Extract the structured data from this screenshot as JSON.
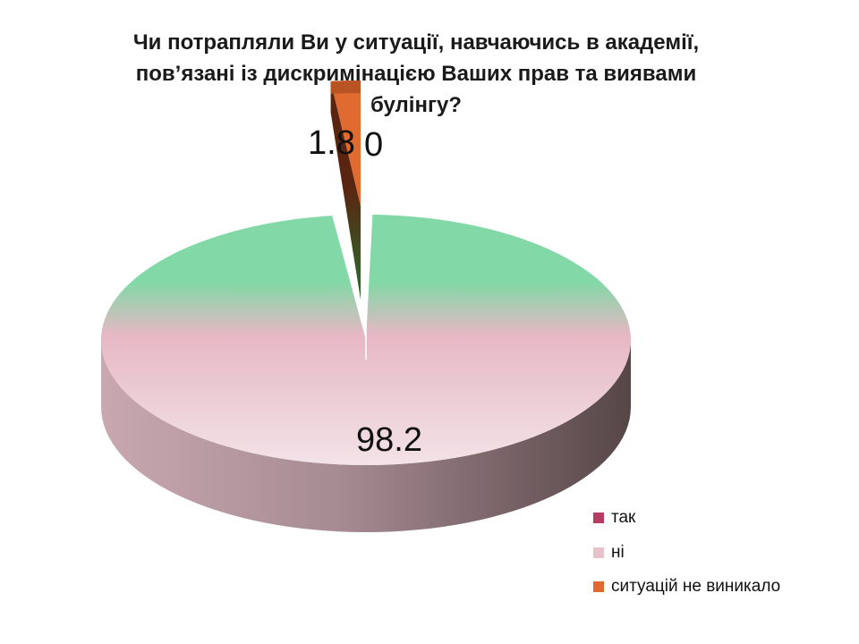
{
  "chart_data": {
    "type": "pie",
    "style": "3d-exploded",
    "title": "Чи потрапляли Ви у ситуації, навчаючись в академії, пов’язані із дискримінацією Ваших прав та виявами булінгу?",
    "series": [
      {
        "name": "так",
        "value": 0,
        "label": "0",
        "color": "#b83b63"
      },
      {
        "name": "ні",
        "value": 98.2,
        "label": "98.2",
        "color": "#e8c2ca"
      },
      {
        "name": "ситуацій не виникало",
        "value": 1.8,
        "label": "1.8",
        "color": "#e06a30"
      }
    ],
    "legend_position": "bottom-right"
  },
  "colors": {
    "green_top": "#82d8a6",
    "pink": "#e8c2ca",
    "orange": "#e06a30",
    "dark_side": "#5a4848"
  }
}
